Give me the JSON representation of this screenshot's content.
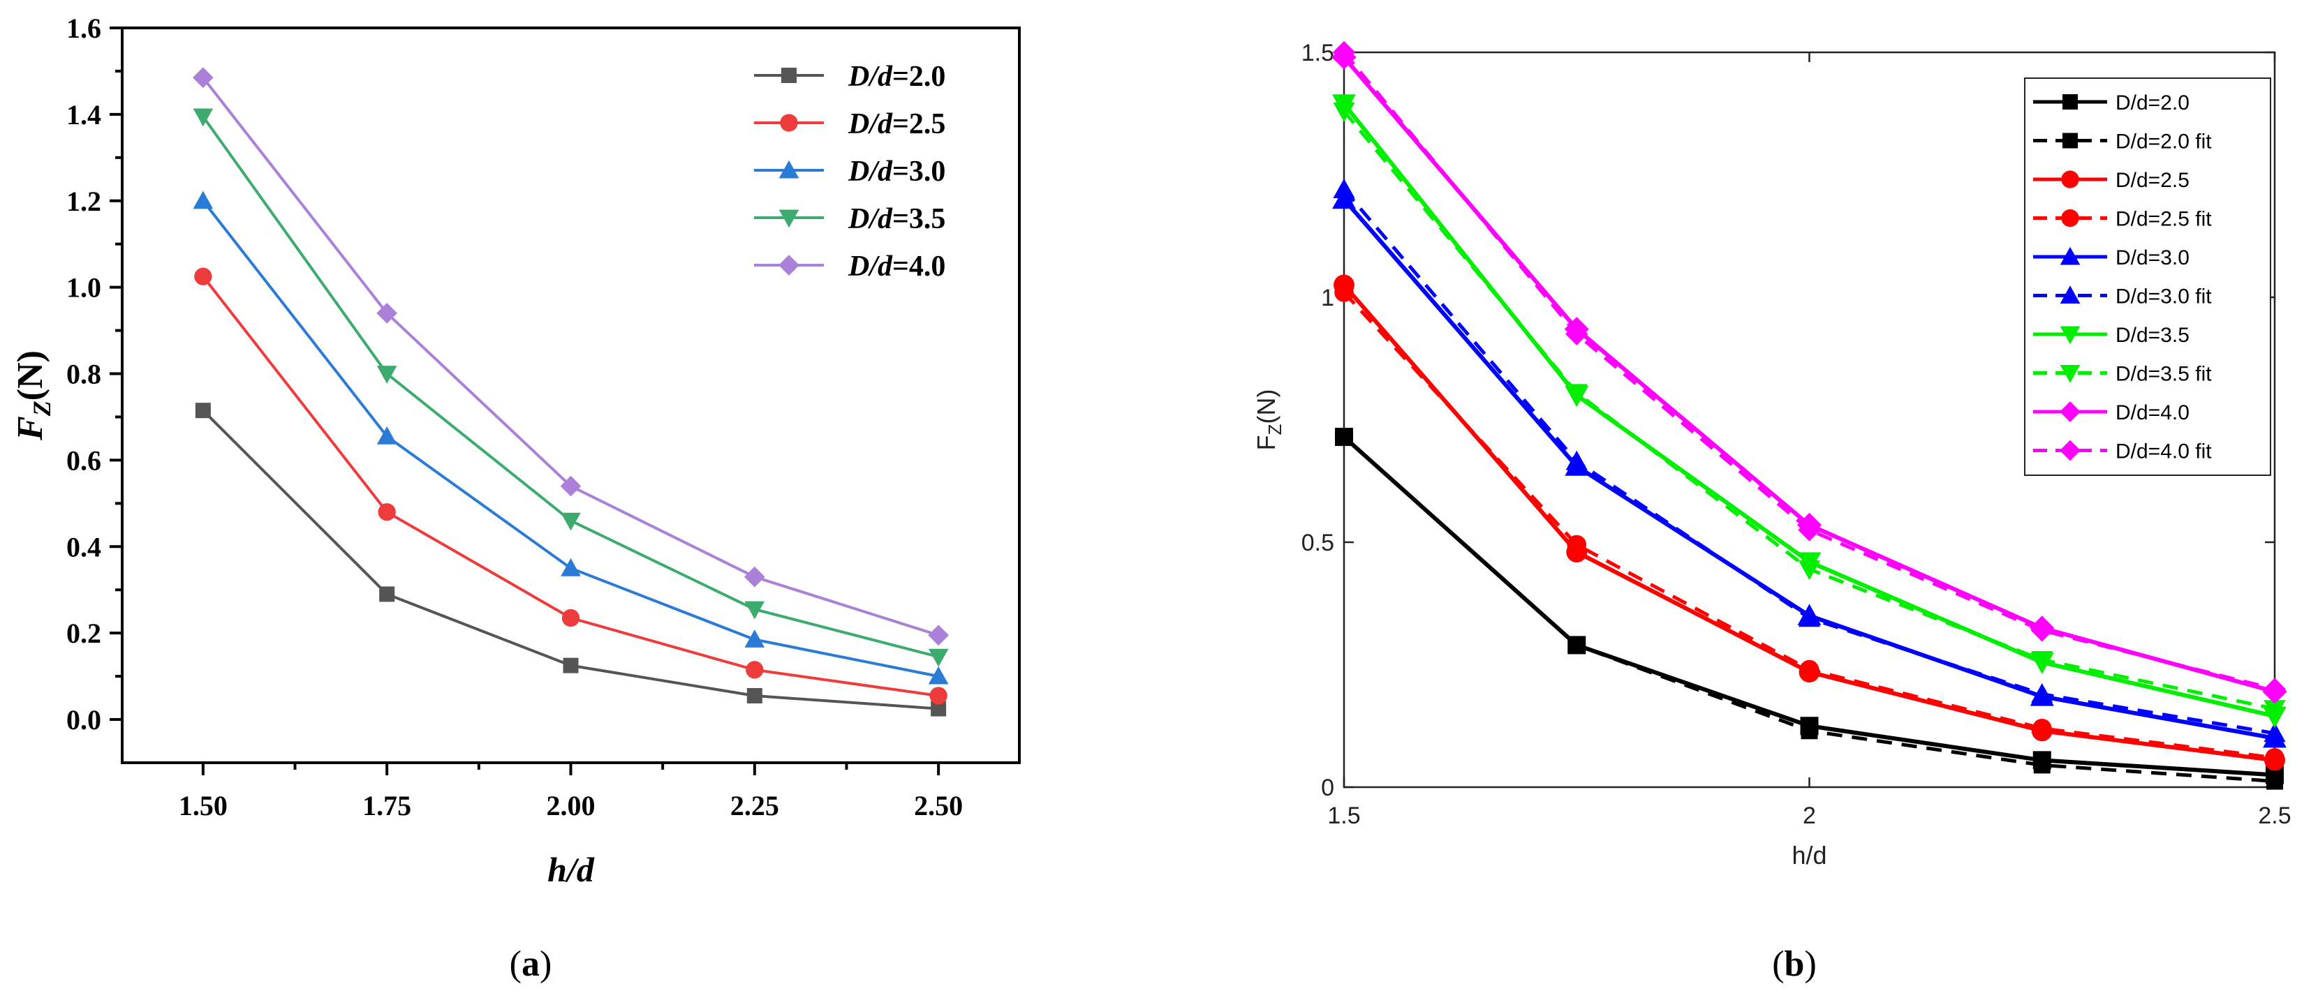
{
  "chart_data": [
    {
      "panel_label": "(a)",
      "panel_letter": "a",
      "type": "line",
      "title": "",
      "xlabel": "h/d",
      "ylabel": {
        "main": "F",
        "sub": "Z",
        "tail": "(N)"
      },
      "xlim": [
        1.39,
        2.61
      ],
      "ylim": [
        -0.1,
        1.6
      ],
      "x_ticks": [
        1.5,
        1.75,
        2.0,
        2.25,
        2.5
      ],
      "x_tick_labels": [
        "1.50",
        "1.75",
        "2.00",
        "2.25",
        "2.50"
      ],
      "y_ticks": [
        0.0,
        0.2,
        0.4,
        0.6,
        0.8,
        1.0,
        1.2,
        1.4,
        1.6
      ],
      "y_tick_labels": [
        "0.0",
        "0.2",
        "0.4",
        "0.6",
        "0.8",
        "1.0",
        "1.2",
        "1.4",
        "1.6"
      ],
      "grid": false,
      "legend_position": "top-right",
      "x": [
        1.5,
        1.75,
        2.0,
        2.25,
        2.5
      ],
      "series": [
        {
          "name": "D/d=2.0",
          "legend": {
            "italic": "D/d",
            "rest": "=2.0"
          },
          "color": "#555555",
          "marker": "square",
          "values": [
            0.715,
            0.29,
            0.125,
            0.055,
            0.025
          ]
        },
        {
          "name": "D/d=2.5",
          "legend": {
            "italic": "D/d",
            "rest": "=2.5"
          },
          "color": "#ee3b3b",
          "marker": "circle",
          "values": [
            1.025,
            0.48,
            0.235,
            0.115,
            0.055
          ]
        },
        {
          "name": "D/d=3.0",
          "legend": {
            "italic": "D/d",
            "rest": "=3.0"
          },
          "color": "#2a7bd6",
          "marker": "triangle-up",
          "values": [
            1.2,
            0.655,
            0.35,
            0.185,
            0.1
          ]
        },
        {
          "name": "D/d=3.5",
          "legend": {
            "italic": "D/d",
            "rest": "=3.5"
          },
          "color": "#3daa6e",
          "marker": "triangle-down",
          "values": [
            1.395,
            0.8,
            0.46,
            0.255,
            0.145
          ]
        },
        {
          "name": "D/d=4.0",
          "legend": {
            "italic": "D/d",
            "rest": "=4.0"
          },
          "color": "#aa80d8",
          "marker": "diamond",
          "values": [
            1.485,
            0.94,
            0.54,
            0.33,
            0.195
          ]
        }
      ]
    },
    {
      "panel_label": "(b)",
      "panel_letter": "b",
      "type": "line",
      "title": "",
      "xlabel": "h/d",
      "ylabel": {
        "main": "F",
        "sub": "Z",
        "tail": "(N)"
      },
      "xlim": [
        1.5,
        2.5
      ],
      "ylim": [
        0,
        1.5
      ],
      "x_ticks": [
        1.5,
        2,
        2.5
      ],
      "x_tick_labels": [
        "1.5",
        "2",
        "2.5"
      ],
      "y_ticks": [
        0,
        0.5,
        1,
        1.5
      ],
      "y_tick_labels": [
        "0",
        "0.5",
        "1",
        "1.5"
      ],
      "grid": false,
      "legend_position": "top-right",
      "x": [
        1.5,
        1.75,
        2.0,
        2.25,
        2.5
      ],
      "series": [
        {
          "name": "D/d=2.0",
          "color": "#000000",
          "marker": "square",
          "dashed": false,
          "values": [
            0.715,
            0.29,
            0.125,
            0.055,
            0.025
          ]
        },
        {
          "name": "D/d=2.0 fit",
          "color": "#000000",
          "marker": "square",
          "dashed": true,
          "values": [
            0.715,
            0.29,
            0.115,
            0.045,
            0.012
          ]
        },
        {
          "name": "D/d=2.5",
          "color": "#ff0000",
          "marker": "circle",
          "dashed": false,
          "values": [
            1.025,
            0.48,
            0.235,
            0.115,
            0.055
          ]
        },
        {
          "name": "D/d=2.5 fit",
          "color": "#ff0000",
          "marker": "circle",
          "dashed": true,
          "values": [
            1.01,
            0.495,
            0.24,
            0.12,
            0.06
          ]
        },
        {
          "name": "D/d=3.0",
          "color": "#0000ff",
          "marker": "triangle-up",
          "dashed": false,
          "values": [
            1.2,
            0.655,
            0.35,
            0.185,
            0.1
          ]
        },
        {
          "name": "D/d=3.0 fit",
          "color": "#0000ff",
          "marker": "triangle-up",
          "dashed": true,
          "values": [
            1.22,
            0.665,
            0.345,
            0.19,
            0.11
          ]
        },
        {
          "name": "D/d=3.5",
          "color": "#00ee00",
          "marker": "triangle-down",
          "dashed": false,
          "values": [
            1.395,
            0.8,
            0.46,
            0.255,
            0.145
          ]
        },
        {
          "name": "D/d=3.5 fit",
          "color": "#00ee00",
          "marker": "triangle-down",
          "dashed": true,
          "values": [
            1.38,
            0.805,
            0.445,
            0.26,
            0.16
          ]
        },
        {
          "name": "D/d=4.0",
          "color": "#ff00ff",
          "marker": "diamond",
          "dashed": false,
          "values": [
            1.49,
            0.935,
            0.535,
            0.325,
            0.195
          ]
        },
        {
          "name": "D/d=4.0 fit",
          "color": "#ff00ff",
          "marker": "diamond",
          "dashed": true,
          "values": [
            1.5,
            0.925,
            0.525,
            0.32,
            0.2
          ]
        }
      ]
    }
  ]
}
